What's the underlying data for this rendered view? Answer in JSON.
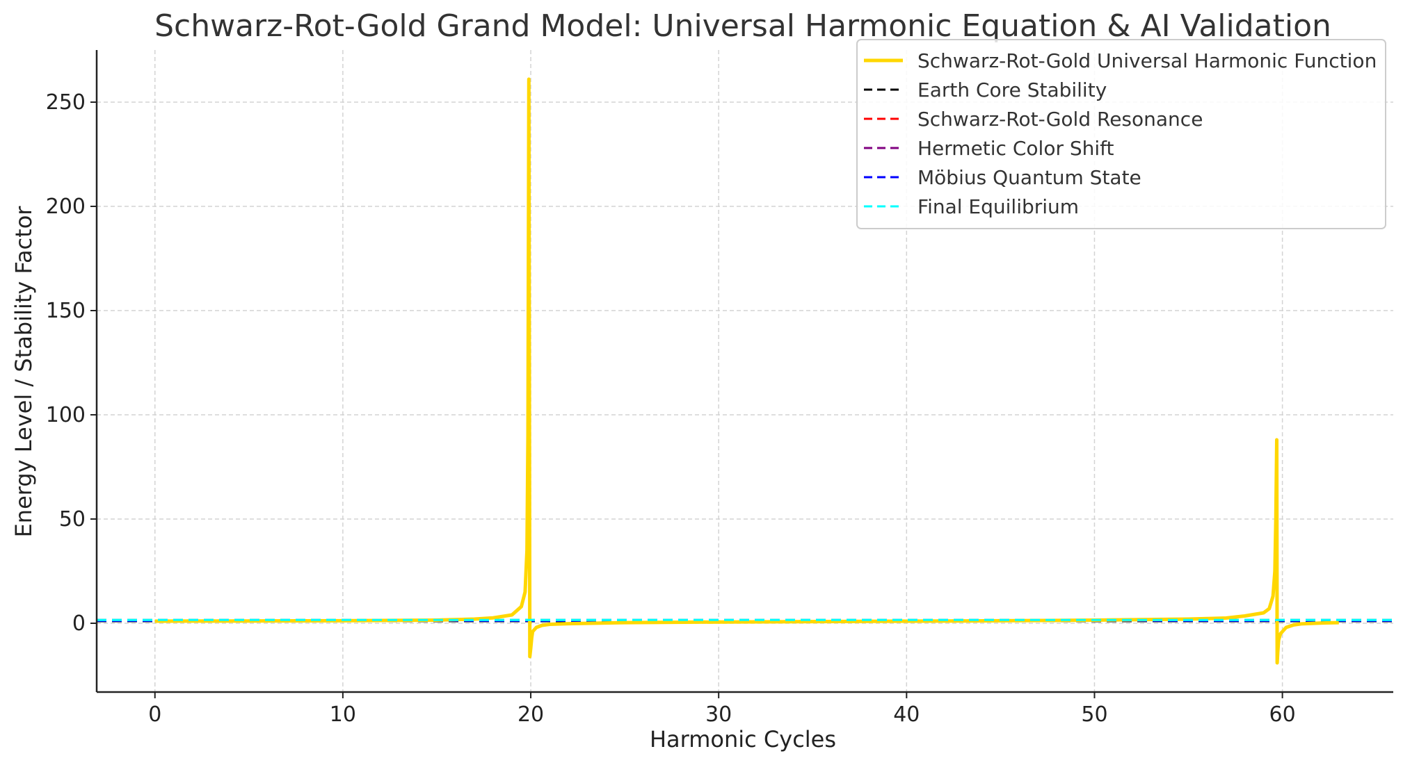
{
  "chart_data": {
    "type": "line",
    "title": "Schwarz-Rot-Gold Grand Model: Universal Harmonic Equation & AI Validation",
    "xlabel": "Harmonic Cycles",
    "ylabel": "Energy Level / Stability Factor",
    "xlim": [
      -3.1,
      65.9
    ],
    "ylim": [
      -33,
      275
    ],
    "xticks": [
      0,
      10,
      20,
      30,
      40,
      50,
      60
    ],
    "yticks": [
      0,
      50,
      100,
      150,
      200,
      250
    ],
    "grid": true,
    "legend_position": "top-right",
    "series": [
      {
        "name": "Schwarz-Rot-Gold Universal Harmonic Function",
        "color": "#FFD700",
        "style": "solid",
        "x": [
          0,
          5,
          10,
          15,
          17,
          18,
          19,
          19.5,
          19.7,
          19.8,
          19.85,
          19.9,
          19.95,
          20.0,
          20.05,
          20.1,
          20.3,
          20.6,
          21,
          22,
          25,
          30,
          35,
          40,
          45,
          50,
          55,
          57,
          58,
          59,
          59.3,
          59.5,
          59.6,
          59.65,
          59.7,
          59.72,
          59.75,
          59.8,
          59.9,
          60.2,
          60.6,
          61,
          62,
          63
        ],
        "y": [
          1,
          1.1,
          1.2,
          1.5,
          2,
          2.6,
          4,
          8,
          15,
          35,
          90,
          261,
          -16,
          -12,
          -7,
          -4,
          -2,
          -1,
          -0.5,
          -0.2,
          0.3,
          0.6,
          0.8,
          1,
          1.2,
          1.5,
          2,
          2.5,
          3.5,
          5,
          7,
          13,
          25,
          50,
          88,
          -19,
          -14,
          -8,
          -5,
          -2,
          -0.8,
          -0.3,
          0.1,
          0.3
        ]
      },
      {
        "name": "Earth Core Stability",
        "color": "#000000",
        "style": "dashed",
        "y": 1
      },
      {
        "name": "Schwarz-Rot-Gold Resonance",
        "color": "#FF0000",
        "style": "dashed",
        "y": 1.6
      },
      {
        "name": "Hermetic Color Shift",
        "color": "#800080",
        "style": "dashed",
        "y": 1.3
      },
      {
        "name": "Möbius Quantum State",
        "color": "#0000FF",
        "style": "dashed",
        "y": 1.2
      },
      {
        "name": "Final Equilibrium",
        "color": "#00FFFF",
        "style": "dashed",
        "y": 1.6
      }
    ]
  }
}
